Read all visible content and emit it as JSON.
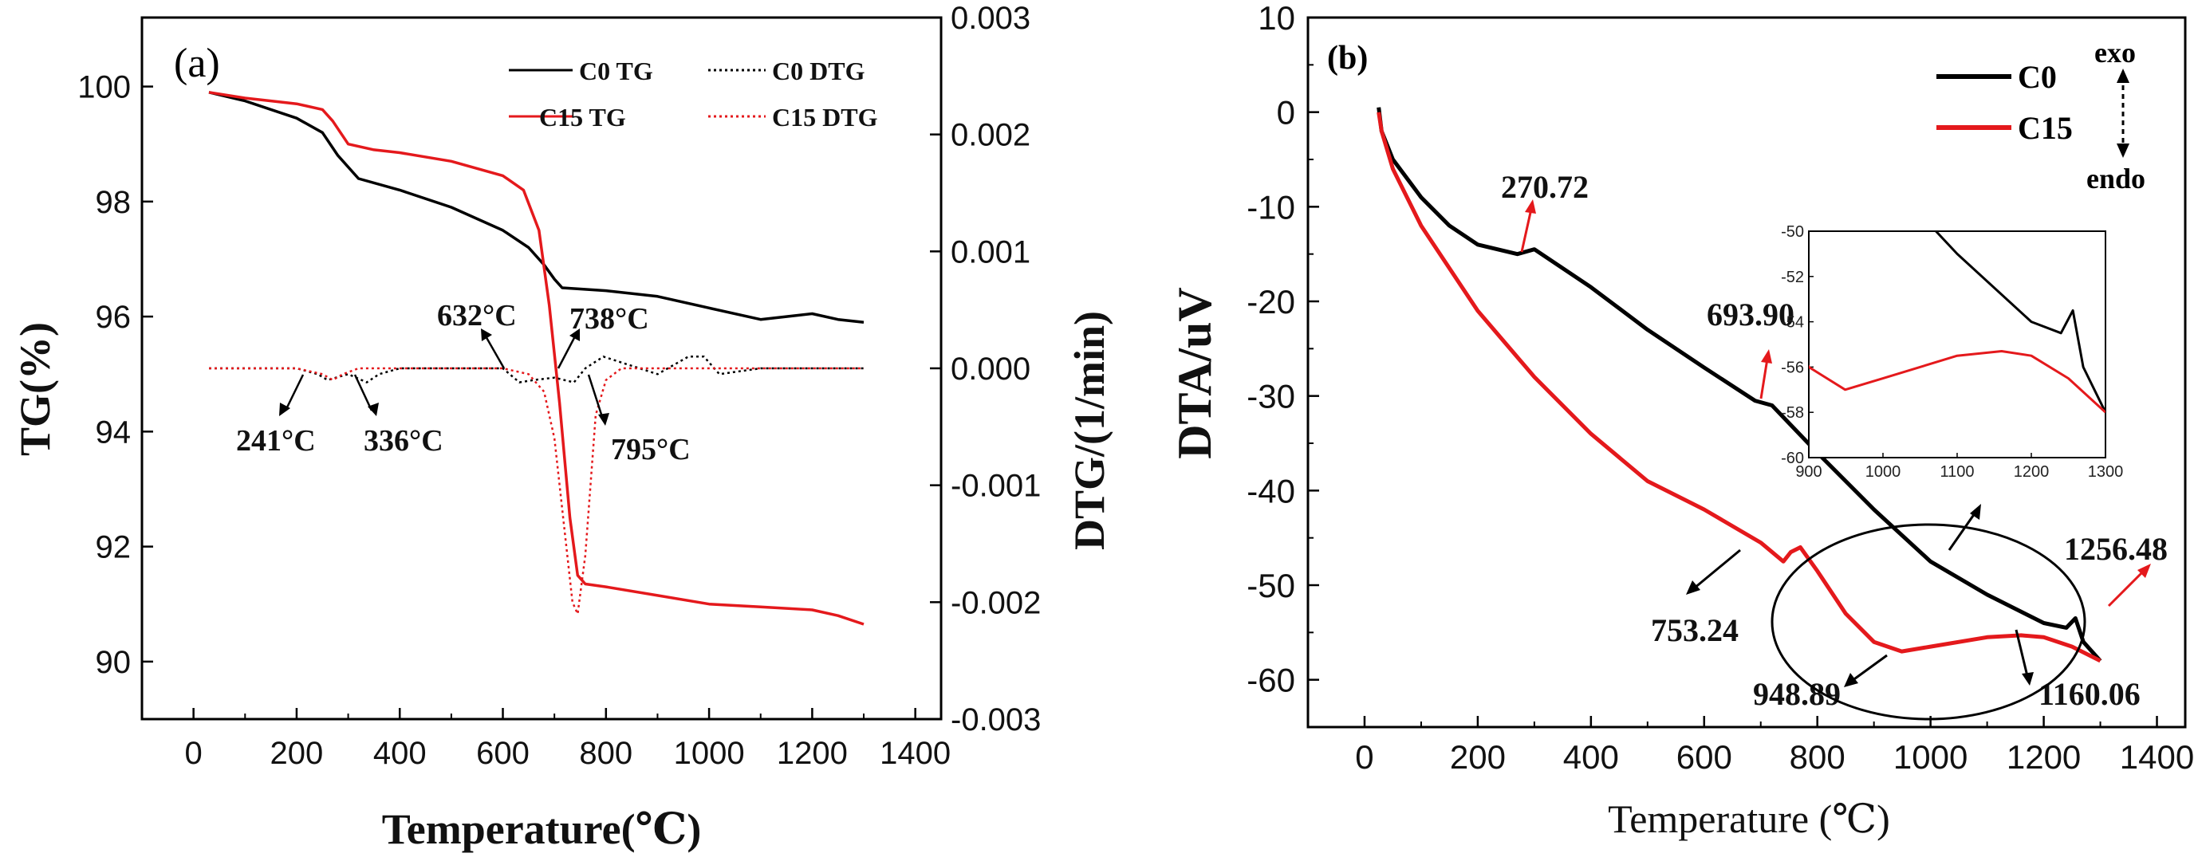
{
  "chart_data": [
    {
      "panel": "(a)",
      "type": "line",
      "xlabel": "Temperature(℃)",
      "ylabel_left": "TG(%)",
      "ylabel_right": "DTG/(1/min)",
      "xlim": [
        -100,
        1450
      ],
      "ylim_left": [
        89.0,
        101.2
      ],
      "ylim_right": [
        -0.003,
        0.003
      ],
      "xticks": [
        "0",
        "200",
        "400",
        "600",
        "800",
        "1000",
        "1200",
        "1400"
      ],
      "yticks_left": [
        "90",
        "92",
        "94",
        "96",
        "98",
        "100"
      ],
      "yticks_right": [
        "0.003",
        "0.002",
        "0.001",
        "0.000",
        "-0.001",
        "-0.002",
        "-0.003"
      ],
      "legend_position": "top-right",
      "series": [
        {
          "name": "C0 TG",
          "axis": "left",
          "color": "#000000",
          "dash": "solid",
          "x": [
            30,
            100,
            200,
            250,
            280,
            320,
            400,
            500,
            600,
            650,
            680,
            700,
            715,
            800,
            900,
            1000,
            1100,
            1150,
            1200,
            1250,
            1300
          ],
          "y": [
            99.9,
            99.75,
            99.45,
            99.2,
            98.8,
            98.4,
            98.2,
            97.9,
            97.5,
            97.2,
            96.9,
            96.65,
            96.5,
            96.45,
            96.35,
            96.15,
            95.95,
            96.0,
            96.05,
            95.95,
            95.9
          ]
        },
        {
          "name": "C15 TG",
          "axis": "left",
          "color": "#e4191c",
          "dash": "solid",
          "x": [
            30,
            100,
            200,
            250,
            270,
            300,
            350,
            400,
            500,
            600,
            640,
            670,
            690,
            710,
            730,
            745,
            760,
            800,
            900,
            1000,
            1100,
            1200,
            1250,
            1300
          ],
          "y": [
            99.9,
            99.8,
            99.7,
            99.6,
            99.4,
            99.0,
            98.9,
            98.85,
            98.7,
            98.45,
            98.2,
            97.5,
            96.2,
            94.5,
            92.5,
            91.5,
            91.35,
            91.3,
            91.15,
            91.0,
            90.95,
            90.9,
            90.8,
            90.65
          ]
        },
        {
          "name": "C0 DTG",
          "axis": "right",
          "color": "#000000",
          "dash": "dotted",
          "x": [
            30,
            200,
            241,
            260,
            300,
            336,
            360,
            400,
            600,
            632,
            660,
            700,
            738,
            760,
            795,
            830,
            900,
            960,
            990,
            1020,
            1100,
            1200,
            1300
          ],
          "y": [
            0.0,
            0.0,
            -5e-05,
            -0.0001,
            -5e-05,
            -0.00012,
            -5e-05,
            0.0,
            0.0,
            -0.00012,
            -0.0001,
            -8e-05,
            -0.00012,
            0.0,
            0.0001,
            5e-05,
            -5e-05,
            0.0001,
            0.0001,
            -5e-05,
            0.0,
            0.0,
            0.0
          ]
        },
        {
          "name": "C15 DTG",
          "axis": "right",
          "color": "#e4191c",
          "dash": "dotted",
          "x": [
            30,
            200,
            250,
            270,
            290,
            320,
            400,
            600,
            650,
            680,
            700,
            720,
            735,
            745,
            760,
            780,
            800,
            830,
            900,
            1000,
            1100,
            1200,
            1300
          ],
          "y": [
            0.0,
            0.0,
            -5e-05,
            -0.0001,
            -5e-05,
            0.0,
            0.0,
            0.0,
            -5e-05,
            -0.0002,
            -0.0006,
            -0.0014,
            -0.002,
            -0.0021,
            -0.0016,
            -0.0004,
            -0.0001,
            0.0,
            0.0,
            0.0,
            0.0,
            0.0,
            0.0
          ]
        }
      ],
      "annotations": [
        "241°C",
        "336°C",
        "632°C",
        "738°C",
        "795°C"
      ]
    },
    {
      "panel": "(b)",
      "type": "line",
      "xlabel": "Temperature (℃)",
      "ylabel": "DTA/uV",
      "xlim": [
        -100,
        1450
      ],
      "ylim": [
        -65,
        10
      ],
      "xticks": [
        "0",
        "200",
        "400",
        "600",
        "800",
        "1000",
        "1200",
        "1400"
      ],
      "yticks": [
        "10",
        "0",
        "-10",
        "-20",
        "-30",
        "-40",
        "-50",
        "-60"
      ],
      "legend_position": "top-right",
      "legend_extra": [
        "exo",
        "endo"
      ],
      "series": [
        {
          "name": "C0",
          "color": "#000000",
          "x": [
            25,
            30,
            50,
            100,
            150,
            200,
            270,
            300,
            400,
            500,
            600,
            690,
            720,
            800,
            900,
            1000,
            1100,
            1200,
            1240,
            1256,
            1270,
            1300
          ],
          "y": [
            0.5,
            -2,
            -5,
            -9,
            -12,
            -14,
            -15,
            -14.5,
            -18.5,
            -23,
            -27,
            -30.5,
            -31,
            -36,
            -42,
            -47.5,
            -51,
            -54,
            -54.5,
            -53.5,
            -56,
            -58
          ]
        },
        {
          "name": "C15",
          "color": "#e4191c",
          "x": [
            25,
            30,
            50,
            100,
            200,
            300,
            400,
            500,
            600,
            700,
            740,
            753,
            770,
            800,
            850,
            900,
            949,
            1000,
            1100,
            1160,
            1200,
            1250,
            1300
          ],
          "y": [
            0,
            -2,
            -6,
            -12,
            -21,
            -28,
            -34,
            -39,
            -42,
            -45.5,
            -47.5,
            -46.5,
            -46,
            -48.5,
            -53,
            -56,
            -57,
            -56.5,
            -55.5,
            -55.3,
            -55.5,
            -56.5,
            -58
          ]
        }
      ],
      "annotations": [
        "270.72",
        "693.90",
        "753.24",
        "948.89",
        "1160.06",
        "1256.48"
      ],
      "inset": {
        "xlim": [
          900,
          1300
        ],
        "ylim": [
          -60,
          -50
        ],
        "xticks": [
          "900",
          "1000",
          "1100",
          "1200",
          "1300"
        ],
        "yticks": [
          "-50",
          "-52",
          "-54",
          "-56",
          "-58",
          "-60"
        ]
      }
    }
  ]
}
